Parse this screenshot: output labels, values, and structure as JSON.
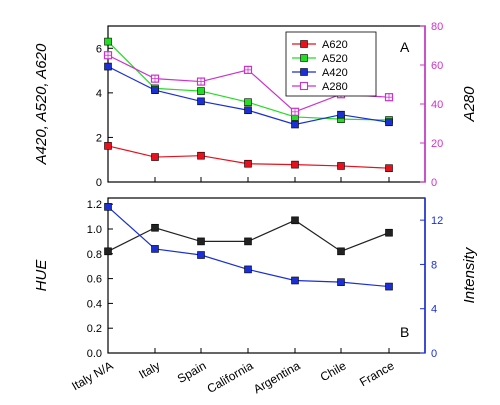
{
  "colors": {
    "a620": "#e8101c",
    "a520": "#22dd22",
    "a420": "#1a2fd6",
    "a280": "#cc33cc",
    "hue": "#222222",
    "intensity": "#1a2fd6",
    "right_axis_top": "#cc33cc",
    "right_axis_bottom": "#1a2fd6"
  },
  "chart_data": [
    {
      "panel_label": "A",
      "type": "line",
      "categories": [
        "Italy N/A",
        "Italy",
        "Spain",
        "California",
        "Argentina",
        "Chile",
        "France"
      ],
      "ylabel_left": "A420, A520, A620",
      "ylabel_right": "A280",
      "ylim_left": [
        0,
        7
      ],
      "yticks_left": [
        "0",
        "2",
        "4",
        "6"
      ],
      "ylim_right": [
        0,
        80
      ],
      "yticks_right": [
        "0",
        "20",
        "40",
        "60",
        "80"
      ],
      "legend_position": "top-right",
      "series": [
        {
          "name": "A620",
          "axis": "left",
          "color": "#e8101c",
          "marker": "filled-square",
          "values": [
            1.62,
            1.12,
            1.18,
            0.82,
            0.78,
            0.72,
            0.62
          ]
        },
        {
          "name": "A520",
          "axis": "left",
          "color": "#22dd22",
          "marker": "filled-square",
          "values": [
            6.3,
            4.2,
            4.08,
            3.58,
            2.92,
            2.82,
            2.78
          ]
        },
        {
          "name": "A420",
          "axis": "left",
          "color": "#1a2fd6",
          "marker": "filled-square",
          "values": [
            5.18,
            4.12,
            3.62,
            3.22,
            2.58,
            3.02,
            2.68
          ]
        },
        {
          "name": "A280",
          "axis": "right",
          "color": "#cc33cc",
          "marker": "open-square",
          "values": [
            65,
            53,
            51.5,
            57.5,
            36,
            45,
            43.5
          ]
        }
      ]
    },
    {
      "panel_label": "B",
      "type": "line",
      "categories": [
        "Italy N/A",
        "Italy",
        "Spain",
        "California",
        "Argentina",
        "Chile",
        "France"
      ],
      "ylabel_left": "HUE",
      "ylabel_right": "Intensity",
      "ylim_left": [
        0,
        1.25
      ],
      "yticks_left": [
        "0.0",
        "0.2",
        "0.4",
        "0.6",
        "0.8",
        "1.0",
        "1.2"
      ],
      "ylim_right": [
        0,
        14
      ],
      "yticks_right": [
        "0",
        "4",
        "8",
        "12"
      ],
      "series": [
        {
          "name": "HUE",
          "axis": "left",
          "color": "#222222",
          "marker": "filled-square",
          "values": [
            0.82,
            1.01,
            0.9,
            0.9,
            1.07,
            0.82,
            0.97
          ]
        },
        {
          "name": "Intensity",
          "axis": "right",
          "color": "#1a2fd6",
          "marker": "filled-square",
          "values": [
            13.2,
            9.4,
            8.85,
            7.55,
            6.55,
            6.4,
            6.0
          ]
        }
      ]
    }
  ]
}
